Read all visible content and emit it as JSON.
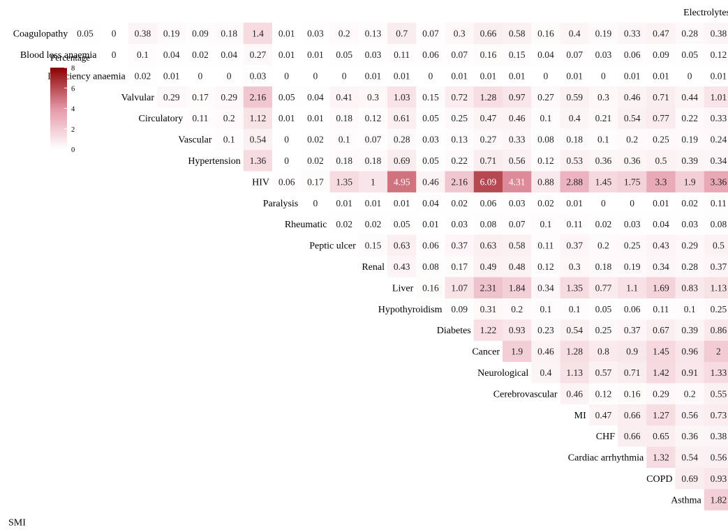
{
  "chart_data": {
    "type": "heatmap",
    "categories": [
      "SMI",
      "Asthma",
      "COPD",
      "Cardiac arrhythmia",
      "CHF",
      "MI",
      "Cerebrovascular",
      "Neurological",
      "Cancer",
      "Diabetes",
      "Hypothyroidism",
      "Liver",
      "Renal",
      "Peptic ulcer",
      "Rheumatic",
      "Paralysis",
      "HIV",
      "Hypertension",
      "Vascular",
      "Circulatory",
      "Valvular",
      "Deficiency anaemia",
      "Blood loss anaemia",
      "Coagulopathy",
      "Electrolytes"
    ],
    "rows": [
      {
        "label": "Asthma",
        "values": [
          1.82
        ]
      },
      {
        "label": "COPD",
        "values": [
          0.69,
          0.93
        ]
      },
      {
        "label": "Cardiac arrhythmia",
        "values": [
          1.32,
          0.54,
          0.56
        ]
      },
      {
        "label": "CHF",
        "values": [
          0.66,
          0.65,
          0.36,
          0.38
        ]
      },
      {
        "label": "MI",
        "values": [
          0.47,
          0.66,
          1.27,
          0.56,
          0.73
        ]
      },
      {
        "label": "Cerebrovascular",
        "values": [
          0.46,
          0.12,
          0.16,
          0.29,
          0.2,
          0.55
        ]
      },
      {
        "label": "Neurological",
        "values": [
          0.4,
          1.13,
          0.57,
          0.71,
          1.42,
          0.91,
          1.33
        ]
      },
      {
        "label": "Cancer",
        "values": [
          1.9,
          0.46,
          1.28,
          0.8,
          0.9,
          1.45,
          0.96,
          2
        ]
      },
      {
        "label": "Diabetes",
        "values": [
          1.22,
          0.93,
          0.23,
          0.54,
          0.25,
          0.37,
          0.67,
          0.39,
          0.86
        ]
      },
      {
        "label": "Hypothyroidism",
        "values": [
          0.09,
          0.31,
          0.2,
          0.1,
          0.1,
          0.05,
          0.06,
          0.11,
          0.1,
          0.25
        ]
      },
      {
        "label": "Liver",
        "values": [
          0.16,
          1.07,
          2.31,
          1.84,
          0.34,
          1.35,
          0.77,
          1.1,
          1.69,
          0.83,
          1.13
        ]
      },
      {
        "label": "Renal",
        "values": [
          0.43,
          0.08,
          0.17,
          0.49,
          0.48,
          0.12,
          0.3,
          0.18,
          0.19,
          0.34,
          0.28,
          0.37
        ]
      },
      {
        "label": "Peptic ulcer",
        "values": [
          0.15,
          0.63,
          0.06,
          0.37,
          0.63,
          0.58,
          0.11,
          0.37,
          0.2,
          0.25,
          0.43,
          0.29,
          0.5
        ]
      },
      {
        "label": "Rheumatic",
        "values": [
          0.02,
          0.02,
          0.05,
          0.01,
          0.03,
          0.08,
          0.07,
          0.1,
          0.11,
          0.02,
          0.03,
          0.04,
          0.03,
          0.08
        ]
      },
      {
        "label": "Paralysis",
        "values": [
          0,
          0.01,
          0.01,
          0.01,
          0.04,
          0.02,
          0.06,
          0.03,
          0.02,
          0.01,
          0,
          0,
          0.01,
          0.02,
          0.11
        ]
      },
      {
        "label": "HIV",
        "values": [
          0.06,
          0.17,
          1.35,
          1,
          4.95,
          0.46,
          2.16,
          6.09,
          4.31,
          0.88,
          2.88,
          1.45,
          1.75,
          3.3,
          1.9,
          3.36
        ]
      },
      {
        "label": "Hypertension",
        "values": [
          1.36,
          0,
          0.02,
          0.18,
          0.18,
          0.69,
          0.05,
          0.22,
          0.71,
          0.56,
          0.12,
          0.53,
          0.36,
          0.36,
          0.5,
          0.39,
          0.34
        ]
      },
      {
        "label": "Vascular",
        "values": [
          0.1,
          0.54,
          0,
          0.02,
          0.1,
          0.07,
          0.28,
          0.03,
          0.13,
          0.27,
          0.33,
          0.08,
          0.18,
          0.1,
          0.2,
          0.25,
          0.19,
          0.24
        ]
      },
      {
        "label": "Circulatory",
        "values": [
          0.11,
          0.2,
          1.12,
          0.01,
          0.01,
          0.18,
          0.12,
          0.61,
          0.05,
          0.25,
          0.47,
          0.46,
          0.1,
          0.4,
          0.21,
          0.54,
          0.77,
          0.22,
          0.33
        ]
      },
      {
        "label": "Valvular",
        "values": [
          0.29,
          0.17,
          0.29,
          2.16,
          0.05,
          0.04,
          0.41,
          0.3,
          1.03,
          0.15,
          0.72,
          1.28,
          0.97,
          0.27,
          0.59,
          0.3,
          0.46,
          0.71,
          0.44,
          1.01
        ]
      },
      {
        "label": "Deficiency anaemia",
        "values": [
          0.02,
          0.01,
          0,
          0,
          0.03,
          0,
          0,
          0,
          0.01,
          0.01,
          0,
          0.01,
          0.01,
          0.01,
          0,
          0.01,
          0,
          0.01,
          0.01,
          0,
          0.01
        ]
      },
      {
        "label": "Blood loss anaemia",
        "values": [
          0,
          0.1,
          0.04,
          0.02,
          0.04,
          0.27,
          0.01,
          0.01,
          0.05,
          0.03,
          0.11,
          0.06,
          0.07,
          0.16,
          0.15,
          0.04,
          0.07,
          0.03,
          0.06,
          0.09,
          0.05,
          0.12
        ]
      },
      {
        "label": "Coagulopathy",
        "values": [
          0.05,
          0,
          0.38,
          0.19,
          0.09,
          0.18,
          1.4,
          0.01,
          0.03,
          0.2,
          0.13,
          0.7,
          0.07,
          0.3,
          0.66,
          0.58,
          0.16,
          0.4,
          0.19,
          0.33,
          0.47,
          0.28,
          0.38
        ]
      },
      {
        "label": "Electrolytes",
        "values": []
      }
    ],
    "legend": {
      "title": "Percentage",
      "ticks": [
        0,
        2,
        4,
        6,
        8
      ],
      "min": 0,
      "max": 8,
      "placement": "top-left"
    },
    "colors": {
      "low": "#ffffff",
      "mid": "#e497a7",
      "high": "#8b0000"
    }
  }
}
